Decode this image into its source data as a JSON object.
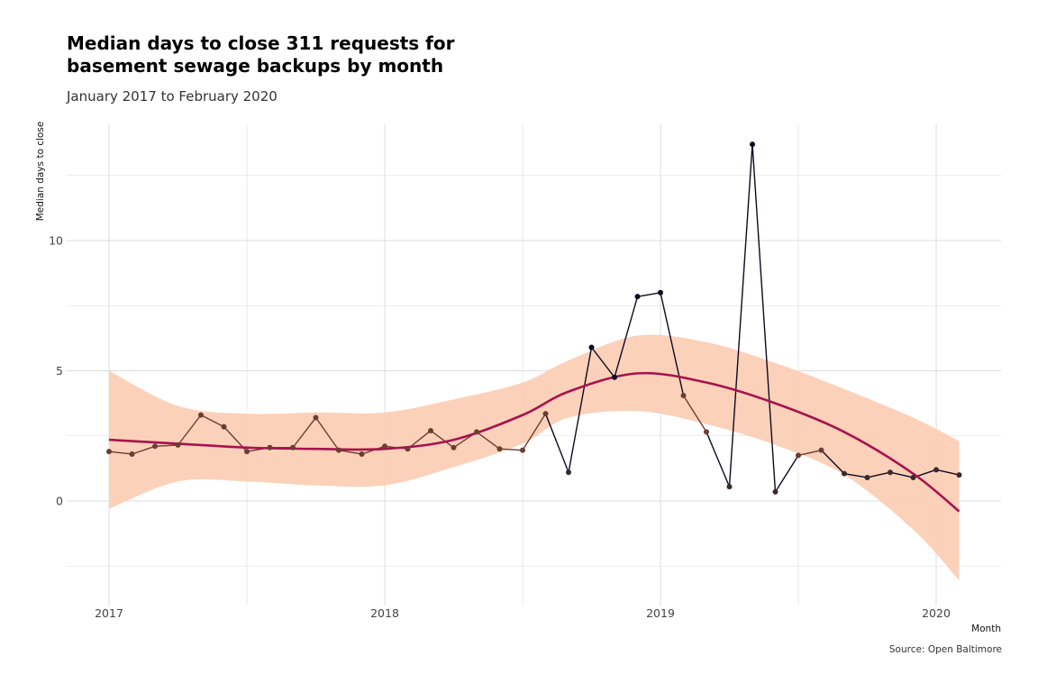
{
  "header": {
    "title": "Median days to close 311 requests for basement sewage backups by month",
    "subtitle": "January 2017 to February 2020"
  },
  "caption": "Source: Open Baltimore",
  "chart_data": {
    "type": "line",
    "title": "Median days to close 311 requests for basement sewage backups by month",
    "subtitle": "January 2017 to February 2020",
    "xlabel": "Month",
    "ylabel": "Median days to close",
    "x_ticks": [
      "2017",
      "2018",
      "2019",
      "2020"
    ],
    "y_ticks": [
      "0",
      "5",
      "10"
    ],
    "xlim": [
      "2017-01",
      "2020-03"
    ],
    "ylim": [
      -2.5,
      14.5
    ],
    "grid": true,
    "legend": "none",
    "series": [
      {
        "x": [
          "2017-01",
          "2017-02",
          "2017-03",
          "2017-04",
          "2017-05",
          "2017-06",
          "2017-07",
          "2017-08",
          "2017-09",
          "2017-10",
          "2017-11",
          "2017-12",
          "2018-01",
          "2018-02",
          "2018-03",
          "2018-04",
          "2018-05",
          "2018-06",
          "2018-07",
          "2018-08",
          "2018-09",
          "2018-10",
          "2018-11",
          "2018-12",
          "2019-01",
          "2019-02",
          "2019-03",
          "2019-04",
          "2019-05",
          "2019-06",
          "2019-07",
          "2019-08",
          "2019-09",
          "2019-10",
          "2019-11",
          "2019-12",
          "2020-01",
          "2020-02"
        ],
        "values": [
          1.9,
          1.8,
          2.1,
          2.15,
          3.3,
          2.85,
          1.9,
          2.05,
          2.05,
          3.2,
          1.95,
          1.8,
          2.1,
          2.0,
          2.7,
          2.05,
          2.65,
          2.0,
          1.95,
          3.35,
          1.1,
          5.9,
          4.75,
          7.85,
          8.0,
          4.05,
          2.65,
          0.55,
          13.7,
          0.35,
          1.75,
          1.95,
          1.05,
          0.9,
          1.1,
          0.9,
          1.2,
          1.0
        ]
      }
    ],
    "smooth": {
      "x": [
        "2017-01",
        "2017-04",
        "2017-07",
        "2017-10",
        "2018-01",
        "2018-04",
        "2018-07",
        "2018-09",
        "2018-12",
        "2019-03",
        "2019-06",
        "2019-09",
        "2019-12",
        "2020-02"
      ],
      "values": [
        2.35,
        2.2,
        2.05,
        2.0,
        2.0,
        2.35,
        3.3,
        4.2,
        4.9,
        4.55,
        3.75,
        2.65,
        1.05,
        -0.4
      ],
      "lower": [
        -0.3,
        0.75,
        0.75,
        0.6,
        0.6,
        1.3,
        2.2,
        3.2,
        3.45,
        2.95,
        2.15,
        1.0,
        -1.1,
        -3.05
      ],
      "upper": [
        5.0,
        3.65,
        3.35,
        3.4,
        3.4,
        3.9,
        4.55,
        5.4,
        6.35,
        6.1,
        5.3,
        4.3,
        3.2,
        2.3
      ]
    },
    "colors": {
      "line_low": "#6b3e31",
      "line_high": "#0d0a22",
      "smooth": "#a7124f",
      "band": "#fccfb5",
      "grid": "#dcdcdc"
    }
  }
}
